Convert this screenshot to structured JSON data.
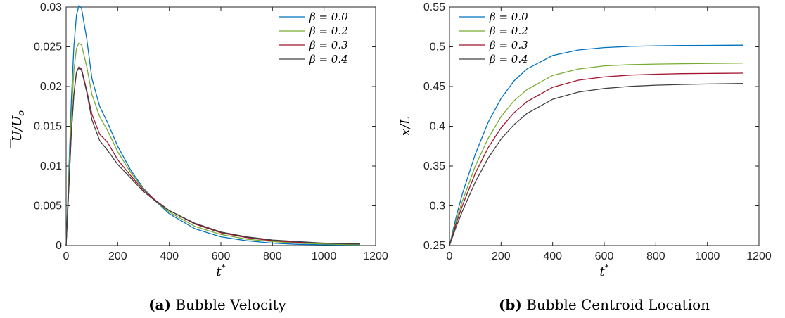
{
  "colors": {
    "series": [
      "#0072BD",
      "#77AC30",
      "#A2142F",
      "#404040"
    ]
  },
  "charts": [
    {
      "chart_data": {
        "type": "line",
        "xlabel": "t*",
        "ylabel": "Ū/U_o",
        "xlim": [
          0,
          1200
        ],
        "ylim": [
          0,
          0.03
        ],
        "xticks": [
          "0",
          "200",
          "400",
          "600",
          "800",
          "1000",
          "1200"
        ],
        "yticks": [
          "0",
          "0.005",
          "0.01",
          "0.015",
          "0.02",
          "0.025",
          "0.03"
        ],
        "legend_position": "top-right",
        "series": [
          {
            "name": "β = 0.0",
            "x": [
              0,
              10,
              20,
              30,
              40,
              50,
              60,
              80,
              100,
              130,
              160,
              200,
              250,
              300,
              350,
              400,
              500,
              600,
              700,
              800,
              900,
              1000,
              1100,
              1140
            ],
            "y": [
              0,
              0.009,
              0.018,
              0.025,
              0.029,
              0.0302,
              0.0298,
              0.026,
              0.021,
              0.0175,
              0.0155,
              0.0125,
              0.0095,
              0.0072,
              0.0055,
              0.004,
              0.0021,
              0.0011,
              0.0006,
              0.0003,
              0.00015,
              0.0001,
              5e-05,
              5e-05
            ]
          },
          {
            "name": "β = 0.2",
            "x": [
              0,
              10,
              20,
              30,
              40,
              50,
              60,
              80,
              100,
              130,
              160,
              200,
              250,
              300,
              350,
              400,
              500,
              600,
              700,
              800,
              900,
              1000,
              1100,
              1140
            ],
            "y": [
              0,
              0.008,
              0.016,
              0.022,
              0.0248,
              0.0255,
              0.0252,
              0.0225,
              0.019,
              0.0162,
              0.0145,
              0.0118,
              0.0092,
              0.0071,
              0.0055,
              0.0042,
              0.0024,
              0.0014,
              0.0008,
              0.0005,
              0.0003,
              0.0002,
              0.0001,
              0.0001
            ]
          },
          {
            "name": "β = 0.3",
            "x": [
              0,
              10,
              20,
              30,
              40,
              50,
              60,
              80,
              100,
              130,
              160,
              200,
              250,
              300,
              350,
              400,
              500,
              600,
              700,
              800,
              900,
              1000,
              1100,
              1140
            ],
            "y": [
              0,
              0.007,
              0.014,
              0.019,
              0.0218,
              0.0225,
              0.0222,
              0.0195,
              0.0165,
              0.014,
              0.013,
              0.0108,
              0.0088,
              0.007,
              0.0056,
              0.0044,
              0.0027,
              0.0016,
              0.001,
              0.0006,
              0.0004,
              0.0003,
              0.0002,
              0.0002
            ]
          },
          {
            "name": "β = 0.4",
            "x": [
              0,
              10,
              20,
              30,
              40,
              50,
              60,
              80,
              100,
              130,
              160,
              200,
              250,
              300,
              350,
              400,
              500,
              600,
              700,
              800,
              900,
              1000,
              1100,
              1140
            ],
            "y": [
              0,
              0.007,
              0.014,
              0.019,
              0.0218,
              0.0224,
              0.022,
              0.0193,
              0.0158,
              0.0132,
              0.012,
              0.0102,
              0.0085,
              0.0068,
              0.0055,
              0.0044,
              0.0028,
              0.0017,
              0.0011,
              0.0007,
              0.0005,
              0.0003,
              0.0002,
              0.0002
            ]
          }
        ]
      },
      "caption_tag": "(a)",
      "caption_text": " Bubble Velocity"
    },
    {
      "chart_data": {
        "type": "line",
        "xlabel": "t*",
        "ylabel": "x/L",
        "xlim": [
          0,
          1200
        ],
        "ylim": [
          0.25,
          0.55
        ],
        "xticks": [
          "0",
          "200",
          "400",
          "600",
          "800",
          "1000",
          "1200"
        ],
        "yticks": [
          "0.25",
          "0.3",
          "0.35",
          "0.4",
          "0.45",
          "0.5",
          "0.55"
        ],
        "legend_position": "top-left",
        "series": [
          {
            "name": "β = 0.0",
            "x": [
              0,
              25,
              50,
              100,
              150,
              200,
              250,
              300,
              400,
              500,
              600,
              700,
              800,
              900,
              1000,
              1140
            ],
            "y": [
              0.25,
              0.285,
              0.315,
              0.365,
              0.405,
              0.435,
              0.457,
              0.472,
              0.489,
              0.496,
              0.499,
              0.5005,
              0.5012,
              0.5016,
              0.5018,
              0.502
            ]
          },
          {
            "name": "β = 0.2",
            "x": [
              0,
              25,
              50,
              100,
              150,
              200,
              250,
              300,
              400,
              500,
              600,
              700,
              800,
              900,
              1000,
              1140
            ],
            "y": [
              0.25,
              0.28,
              0.306,
              0.35,
              0.385,
              0.412,
              0.432,
              0.446,
              0.464,
              0.472,
              0.476,
              0.4775,
              0.4782,
              0.4787,
              0.479,
              0.4795
            ]
          },
          {
            "name": "β = 0.3",
            "x": [
              0,
              25,
              50,
              100,
              150,
              200,
              250,
              300,
              400,
              500,
              600,
              700,
              800,
              900,
              1000,
              1140
            ],
            "y": [
              0.25,
              0.277,
              0.3,
              0.341,
              0.373,
              0.398,
              0.417,
              0.431,
              0.449,
              0.458,
              0.462,
              0.4643,
              0.4655,
              0.4662,
              0.4665,
              0.4668
            ]
          },
          {
            "name": "β = 0.4",
            "x": [
              0,
              25,
              50,
              100,
              150,
              200,
              250,
              300,
              400,
              500,
              600,
              700,
              800,
              900,
              1000,
              1140
            ],
            "y": [
              0.25,
              0.273,
              0.293,
              0.33,
              0.36,
              0.384,
              0.402,
              0.416,
              0.434,
              0.443,
              0.4475,
              0.4502,
              0.4517,
              0.4526,
              0.4532,
              0.4538
            ]
          }
        ]
      },
      "caption_tag": "(b)",
      "caption_text": " Bubble Centroid Location"
    }
  ]
}
